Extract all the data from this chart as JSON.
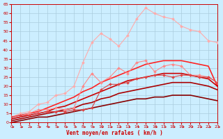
{
  "xlabel": "Vent moyen/en rafales ( km/h )",
  "bg_color": "#cceeff",
  "grid_color": "#aaccdd",
  "x_max": 23,
  "y_max": 65,
  "y_ticks": [
    0,
    5,
    10,
    15,
    20,
    25,
    30,
    35,
    40,
    45,
    50,
    55,
    60,
    65
  ],
  "x_ticks": [
    0,
    1,
    2,
    3,
    4,
    5,
    6,
    7,
    8,
    9,
    10,
    11,
    12,
    13,
    14,
    15,
    16,
    17,
    18,
    19,
    20,
    21,
    22,
    23
  ],
  "series": [
    {
      "color": "#ffaaaa",
      "lw": 0.8,
      "marker": "D",
      "ms": 2.0,
      "x": [
        0,
        1,
        2,
        3,
        4,
        5,
        6,
        7,
        8,
        9,
        10,
        11,
        12,
        13,
        14,
        15,
        16,
        17,
        18,
        19,
        20,
        21,
        22,
        23
      ],
      "y": [
        3,
        5,
        6,
        10,
        11,
        15,
        16,
        20,
        33,
        44,
        49,
        46,
        42,
        48,
        57,
        63,
        60,
        58,
        57,
        53,
        51,
        50,
        45,
        44
      ]
    },
    {
      "color": "#ff8888",
      "lw": 0.8,
      "marker": "D",
      "ms": 2.0,
      "x": [
        0,
        1,
        2,
        3,
        4,
        5,
        6,
        7,
        8,
        9,
        10,
        11,
        12,
        13,
        14,
        15,
        16,
        17,
        18,
        19,
        20,
        21,
        22,
        23
      ],
      "y": [
        3,
        4,
        5,
        7,
        7,
        8,
        7,
        8,
        20,
        27,
        22,
        25,
        30,
        27,
        33,
        34,
        28,
        31,
        32,
        31,
        26,
        26,
        25,
        22
      ]
    },
    {
      "color": "#dd4444",
      "lw": 0.8,
      "marker": "D",
      "ms": 2.0,
      "x": [
        0,
        1,
        2,
        3,
        4,
        5,
        6,
        7,
        8,
        9,
        10,
        11,
        12,
        13,
        14,
        15,
        16,
        17,
        18,
        19,
        20,
        21,
        22,
        23
      ],
      "y": [
        3,
        4,
        4,
        5,
        6,
        6,
        6,
        7,
        7,
        8,
        18,
        21,
        21,
        22,
        24,
        25,
        26,
        26,
        25,
        26,
        26,
        25,
        25,
        22
      ]
    },
    {
      "color": "#ff2222",
      "lw": 1.2,
      "marker": null,
      "ms": 0,
      "x": [
        0,
        1,
        2,
        3,
        4,
        5,
        6,
        7,
        8,
        9,
        10,
        11,
        12,
        13,
        14,
        15,
        16,
        17,
        18,
        19,
        20,
        21,
        22,
        23
      ],
      "y": [
        3,
        4,
        5,
        6,
        8,
        10,
        12,
        14,
        17,
        19,
        22,
        24,
        26,
        28,
        30,
        32,
        33,
        34,
        34,
        34,
        33,
        32,
        31,
        20
      ]
    },
    {
      "color": "#cc0000",
      "lw": 1.2,
      "marker": null,
      "ms": 0,
      "x": [
        0,
        1,
        2,
        3,
        4,
        5,
        6,
        7,
        8,
        9,
        10,
        11,
        12,
        13,
        14,
        15,
        16,
        17,
        18,
        19,
        20,
        21,
        22,
        23
      ],
      "y": [
        2,
        3,
        4,
        5,
        6,
        8,
        9,
        11,
        13,
        15,
        17,
        19,
        21,
        23,
        24,
        25,
        26,
        27,
        27,
        27,
        26,
        25,
        24,
        20
      ]
    },
    {
      "color": "#aa0000",
      "lw": 1.2,
      "marker": null,
      "ms": 0,
      "x": [
        0,
        1,
        2,
        3,
        4,
        5,
        6,
        7,
        8,
        9,
        10,
        11,
        12,
        13,
        14,
        15,
        16,
        17,
        18,
        19,
        20,
        21,
        22,
        23
      ],
      "y": [
        1,
        2,
        3,
        4,
        5,
        6,
        7,
        8,
        10,
        11,
        13,
        14,
        16,
        17,
        18,
        19,
        20,
        21,
        22,
        22,
        22,
        21,
        20,
        18
      ]
    },
    {
      "color": "#880000",
      "lw": 1.2,
      "marker": null,
      "ms": 0,
      "x": [
        0,
        1,
        2,
        3,
        4,
        5,
        6,
        7,
        8,
        9,
        10,
        11,
        12,
        13,
        14,
        15,
        16,
        17,
        18,
        19,
        20,
        21,
        22,
        23
      ],
      "y": [
        0,
        1,
        2,
        3,
        3,
        4,
        5,
        6,
        7,
        8,
        9,
        10,
        11,
        12,
        13,
        13,
        14,
        14,
        15,
        15,
        15,
        14,
        13,
        12
      ]
    }
  ],
  "arrow_color": "#cc0000",
  "tick_color": "#cc0000",
  "spine_color": "#cc0000",
  "xlabel_color": "#cc0000",
  "tick_fontsize": 4.5,
  "xlabel_fontsize": 5.5
}
